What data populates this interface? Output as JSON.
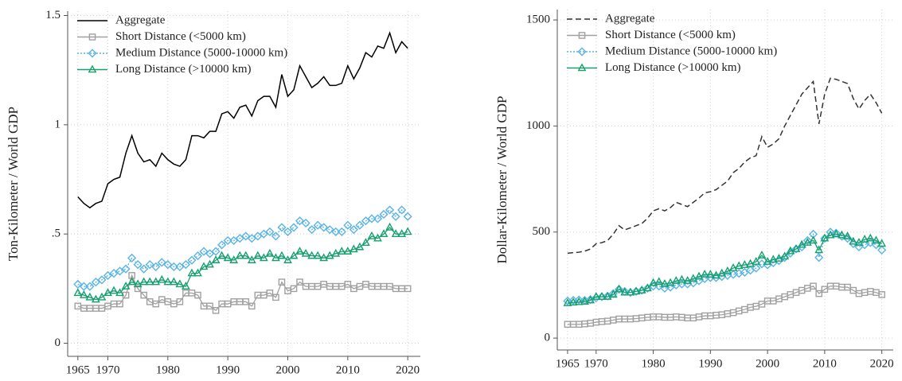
{
  "chart_data": [
    {
      "type": "line",
      "ylabel": "Ton-Kilometer / World GDP",
      "legend": "top-left",
      "grid": true,
      "xlim": [
        1963.3,
        2022.1
      ],
      "ylim": [
        -0.06,
        1.52
      ],
      "xticks": [
        1965,
        1970,
        1980,
        1990,
        2000,
        2010,
        2020
      ],
      "yticks": [
        0,
        {
          "value": 0.5,
          "label": ".5"
        },
        1,
        1.5
      ],
      "x": [
        1965,
        1966,
        1967,
        1968,
        1969,
        1970,
        1971,
        1972,
        1973,
        1974,
        1975,
        1976,
        1977,
        1978,
        1979,
        1980,
        1981,
        1982,
        1983,
        1984,
        1985,
        1986,
        1987,
        1988,
        1989,
        1990,
        1991,
        1992,
        1993,
        1994,
        1995,
        1996,
        1997,
        1998,
        1999,
        2000,
        2001,
        2002,
        2003,
        2004,
        2005,
        2006,
        2007,
        2008,
        2009,
        2010,
        2011,
        2012,
        2013,
        2014,
        2015,
        2016,
        2017,
        2018,
        2019,
        2020
      ],
      "series": [
        {
          "name": "Aggregate",
          "color": "#000000",
          "line_style": "solid",
          "marker": "none",
          "values": [
            0.67,
            0.64,
            0.62,
            0.64,
            0.65,
            0.73,
            0.75,
            0.76,
            0.87,
            0.95,
            0.87,
            0.83,
            0.84,
            0.81,
            0.87,
            0.84,
            0.82,
            0.81,
            0.84,
            0.95,
            0.95,
            0.94,
            0.97,
            0.97,
            1.05,
            1.06,
            1.03,
            1.08,
            1.09,
            1.04,
            1.11,
            1.13,
            1.13,
            1.08,
            1.23,
            1.13,
            1.16,
            1.27,
            1.22,
            1.17,
            1.19,
            1.22,
            1.18,
            1.18,
            1.19,
            1.27,
            1.21,
            1.26,
            1.33,
            1.31,
            1.36,
            1.35,
            1.42,
            1.33,
            1.38,
            1.35
          ]
        },
        {
          "name": "Short Distance (<5000 km)",
          "color": "#a0a0a0",
          "line_style": "solid",
          "marker": "square",
          "values": [
            0.17,
            0.16,
            0.16,
            0.16,
            0.16,
            0.17,
            0.18,
            0.18,
            0.22,
            0.31,
            0.25,
            0.22,
            0.19,
            0.18,
            0.2,
            0.19,
            0.18,
            0.19,
            0.23,
            0.23,
            0.22,
            0.17,
            0.17,
            0.15,
            0.18,
            0.18,
            0.19,
            0.19,
            0.19,
            0.17,
            0.22,
            0.22,
            0.23,
            0.21,
            0.28,
            0.24,
            0.25,
            0.28,
            0.26,
            0.26,
            0.26,
            0.27,
            0.26,
            0.26,
            0.26,
            0.27,
            0.25,
            0.26,
            0.27,
            0.26,
            0.26,
            0.26,
            0.26,
            0.25,
            0.25,
            0.25
          ]
        },
        {
          "name": "Medium Distance (5000-10000 km)",
          "color": "#5ab4e6",
          "line_style": "dotted",
          "marker": "diamond",
          "values": [
            0.27,
            0.26,
            0.26,
            0.28,
            0.29,
            0.31,
            0.32,
            0.33,
            0.34,
            0.39,
            0.36,
            0.34,
            0.36,
            0.35,
            0.37,
            0.36,
            0.35,
            0.35,
            0.36,
            0.38,
            0.4,
            0.42,
            0.41,
            0.42,
            0.45,
            0.47,
            0.47,
            0.48,
            0.49,
            0.48,
            0.49,
            0.5,
            0.51,
            0.49,
            0.53,
            0.51,
            0.53,
            0.56,
            0.55,
            0.52,
            0.54,
            0.53,
            0.52,
            0.51,
            0.51,
            0.54,
            0.52,
            0.54,
            0.56,
            0.57,
            0.57,
            0.59,
            0.61,
            0.58,
            0.61,
            0.58
          ]
        },
        {
          "name": "Long Distance (>10000 km)",
          "color": "#17a06e",
          "line_style": "solid",
          "marker": "triangle",
          "values": [
            0.23,
            0.22,
            0.21,
            0.2,
            0.21,
            0.23,
            0.24,
            0.23,
            0.26,
            0.28,
            0.27,
            0.28,
            0.28,
            0.28,
            0.29,
            0.28,
            0.28,
            0.27,
            0.26,
            0.32,
            0.32,
            0.35,
            0.36,
            0.38,
            0.4,
            0.39,
            0.38,
            0.4,
            0.4,
            0.38,
            0.4,
            0.39,
            0.41,
            0.39,
            0.4,
            0.38,
            0.4,
            0.42,
            0.41,
            0.4,
            0.4,
            0.39,
            0.4,
            0.41,
            0.42,
            0.42,
            0.43,
            0.44,
            0.46,
            0.49,
            0.48,
            0.5,
            0.53,
            0.5,
            0.5,
            0.51
          ]
        }
      ]
    },
    {
      "type": "line",
      "ylabel": "Dollar-Kilometer / World GDP",
      "legend": "top-left",
      "grid": true,
      "xlim": [
        1963.2,
        2022
      ],
      "ylim": [
        -56,
        1549
      ],
      "xticks": [
        1965,
        1970,
        1980,
        1990,
        2000,
        2010,
        2020
      ],
      "yticks": [
        0,
        500,
        1000,
        1500
      ],
      "x": [
        1965,
        1966,
        1967,
        1968,
        1969,
        1970,
        1971,
        1972,
        1973,
        1974,
        1975,
        1976,
        1977,
        1978,
        1979,
        1980,
        1981,
        1982,
        1983,
        1984,
        1985,
        1986,
        1987,
        1988,
        1989,
        1990,
        1991,
        1992,
        1993,
        1994,
        1995,
        1996,
        1997,
        1998,
        1999,
        2000,
        2001,
        2002,
        2003,
        2004,
        2005,
        2006,
        2007,
        2008,
        2009,
        2010,
        2011,
        2012,
        2013,
        2014,
        2015,
        2016,
        2017,
        2018,
        2019,
        2020
      ],
      "series": [
        {
          "name": "Aggregate",
          "color": "#333333",
          "line_style": "dashed",
          "marker": "none",
          "values": [
            400,
            403,
            405,
            410,
            420,
            445,
            450,
            460,
            490,
            530,
            510,
            520,
            530,
            540,
            565,
            600,
            610,
            600,
            615,
            640,
            630,
            620,
            640,
            660,
            685,
            690,
            700,
            720,
            740,
            780,
            800,
            830,
            850,
            860,
            950,
            900,
            915,
            940,
            1000,
            1050,
            1100,
            1150,
            1180,
            1210,
            1010,
            1150,
            1225,
            1220,
            1210,
            1200,
            1130,
            1080,
            1120,
            1150,
            1110,
            1060
          ]
        },
        {
          "name": "Short Distance (<5000 km)",
          "color": "#a0a0a0",
          "line_style": "solid",
          "marker": "square",
          "values": [
            65,
            65,
            65,
            67,
            70,
            75,
            78,
            80,
            85,
            90,
            90,
            90,
            92,
            95,
            98,
            100,
            100,
            98,
            98,
            100,
            98,
            95,
            95,
            100,
            105,
            105,
            108,
            110,
            115,
            120,
            128,
            135,
            145,
            150,
            160,
            175,
            175,
            185,
            195,
            205,
            215,
            225,
            235,
            245,
            210,
            230,
            245,
            245,
            240,
            240,
            225,
            210,
            215,
            220,
            215,
            205
          ]
        },
        {
          "name": "Medium Distance (5000-10000 km)",
          "color": "#5ab4e6",
          "line_style": "dotted",
          "marker": "diamond",
          "values": [
            175,
            178,
            180,
            178,
            182,
            190,
            195,
            198,
            210,
            230,
            220,
            215,
            220,
            225,
            235,
            245,
            245,
            235,
            240,
            250,
            255,
            255,
            260,
            270,
            280,
            285,
            285,
            290,
            295,
            300,
            305,
            310,
            320,
            330,
            350,
            345,
            355,
            365,
            380,
            400,
            420,
            430,
            460,
            490,
            380,
            470,
            500,
            495,
            480,
            470,
            445,
            430,
            440,
            450,
            440,
            415
          ]
        },
        {
          "name": "Long Distance (>10000 km)",
          "color": "#17a06e",
          "line_style": "solid",
          "marker": "triangle",
          "values": [
            165,
            168,
            170,
            172,
            178,
            195,
            195,
            195,
            205,
            230,
            215,
            215,
            220,
            225,
            235,
            260,
            265,
            255,
            260,
            270,
            275,
            270,
            280,
            290,
            300,
            300,
            295,
            305,
            315,
            330,
            340,
            345,
            350,
            360,
            390,
            360,
            370,
            375,
            385,
            410,
            420,
            440,
            450,
            460,
            415,
            470,
            485,
            490,
            485,
            480,
            455,
            450,
            465,
            470,
            460,
            445
          ]
        }
      ]
    }
  ]
}
